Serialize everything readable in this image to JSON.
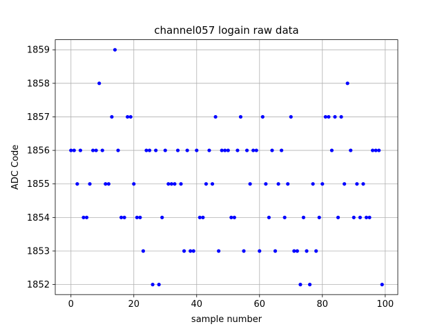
{
  "chart_data": {
    "type": "scatter",
    "title": "channel057 logain raw data",
    "xlabel": "sample number",
    "ylabel": "ADC Code",
    "xlim": [
      -5,
      104
    ],
    "ylim": [
      1851.7,
      1859.3
    ],
    "xticks": [
      0,
      20,
      40,
      60,
      80,
      100
    ],
    "yticks": [
      1852,
      1853,
      1854,
      1855,
      1856,
      1857,
      1858,
      1859
    ],
    "grid": true,
    "marker_color": "#0000ff",
    "series": [
      {
        "x": [
          0,
          1,
          2,
          3,
          4,
          5,
          6,
          7,
          8,
          9,
          10,
          11,
          12,
          13,
          14,
          15,
          16,
          17,
          18,
          19,
          20,
          21,
          22,
          23,
          24,
          25,
          26,
          27,
          28,
          29,
          30,
          31,
          32,
          33,
          34,
          35,
          36,
          37,
          38,
          39,
          40,
          41,
          42,
          43,
          44,
          45,
          46,
          47,
          48,
          49,
          50,
          51,
          52,
          53,
          54,
          55,
          56,
          57,
          58,
          59,
          60,
          61,
          62,
          63,
          64,
          65,
          66,
          67,
          68,
          69,
          70,
          71,
          72,
          73,
          74,
          75,
          76,
          77,
          78,
          79,
          80,
          81,
          82,
          83,
          84,
          85,
          86,
          87,
          88,
          89,
          90,
          91,
          92,
          93,
          94,
          95,
          96,
          97,
          98,
          99
        ],
        "y": [
          1856,
          1856,
          1855,
          1856,
          1854,
          1854,
          1855,
          1856,
          1856,
          1858,
          1856,
          1855,
          1855,
          1857,
          1859,
          1856,
          1854,
          1854,
          1857,
          1857,
          1855,
          1854,
          1854,
          1853,
          1856,
          1856,
          1852,
          1856,
          1852,
          1854,
          1856,
          1855,
          1855,
          1855,
          1856,
          1855,
          1853,
          1856,
          1853,
          1853,
          1856,
          1854,
          1854,
          1855,
          1856,
          1855,
          1857,
          1853,
          1856,
          1856,
          1856,
          1854,
          1854,
          1856,
          1857,
          1853,
          1856,
          1855,
          1856,
          1856,
          1853,
          1857,
          1855,
          1854,
          1856,
          1853,
          1855,
          1856,
          1854,
          1855,
          1857,
          1853,
          1853,
          1852,
          1854,
          1853,
          1852,
          1855,
          1853,
          1854,
          1855,
          1857,
          1857,
          1856,
          1857,
          1854,
          1857,
          1855,
          1858,
          1856,
          1854,
          1855,
          1854,
          1855,
          1854,
          1854,
          1856,
          1856,
          1856,
          1852
        ]
      }
    ]
  }
}
